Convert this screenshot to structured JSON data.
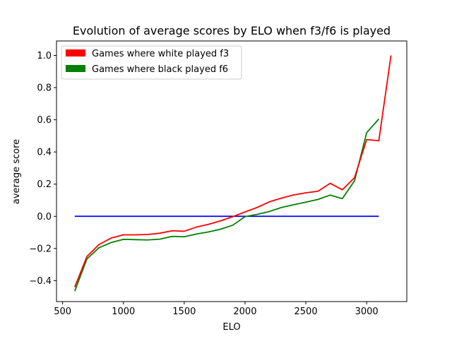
{
  "chart_data": {
    "type": "line",
    "title": "Evolution of average scores by ELO when f3/f6 is played",
    "xlabel": "ELO",
    "ylabel": "average score",
    "xlim": [
      450,
      3330
    ],
    "ylim": [
      -0.53,
      1.09
    ],
    "xticks": [
      500,
      1000,
      1500,
      2000,
      2500,
      3000
    ],
    "yticks": [
      -0.4,
      -0.2,
      0.0,
      0.2,
      0.4,
      0.6,
      0.8,
      1.0
    ],
    "xtick_labels": [
      "500",
      "1000",
      "1500",
      "2000",
      "2500",
      "3000"
    ],
    "ytick_labels": [
      "−0.4",
      "−0.2",
      "0.0",
      "0.2",
      "0.4",
      "0.6",
      "0.8",
      "1.0"
    ],
    "grid": false,
    "legend_position": "top-left",
    "legend": [
      {
        "label": "Games where white played f3",
        "color": "#ff0000"
      },
      {
        "label": "Games where black played f6",
        "color": "#008000"
      }
    ],
    "series": [
      {
        "name": "Games where white played f3",
        "color": "#ff0000",
        "x": [
          600,
          700,
          800,
          900,
          1000,
          1100,
          1200,
          1300,
          1400,
          1500,
          1600,
          1700,
          1800,
          1900,
          2000,
          2100,
          2200,
          2300,
          2400,
          2500,
          2600,
          2700,
          2800,
          2900,
          3000,
          3100,
          3200
        ],
        "y": [
          -0.44,
          -0.25,
          -0.175,
          -0.135,
          -0.115,
          -0.115,
          -0.113,
          -0.105,
          -0.09,
          -0.093,
          -0.067,
          -0.05,
          -0.028,
          -0.002,
          0.027,
          0.055,
          0.09,
          0.113,
          0.133,
          0.146,
          0.156,
          0.205,
          0.165,
          0.24,
          0.477,
          0.47,
          1.0
        ]
      },
      {
        "name": "Games where black played f6",
        "color": "#008000",
        "x": [
          600,
          700,
          800,
          900,
          1000,
          1100,
          1200,
          1300,
          1400,
          1500,
          1600,
          1700,
          1800,
          1900,
          2000,
          2100,
          2200,
          2300,
          2400,
          2500,
          2600,
          2700,
          2800,
          2900,
          3000,
          3100
        ],
        "y": [
          -0.465,
          -0.265,
          -0.195,
          -0.163,
          -0.143,
          -0.145,
          -0.147,
          -0.142,
          -0.125,
          -0.127,
          -0.11,
          -0.097,
          -0.08,
          -0.055,
          -0.002,
          0.012,
          0.03,
          0.055,
          0.072,
          0.088,
          0.105,
          0.132,
          0.11,
          0.22,
          0.52,
          0.605
        ]
      },
      {
        "name": "",
        "color": "#0000ff",
        "x": [
          600,
          3100
        ],
        "y": [
          0.0,
          0.0
        ]
      }
    ]
  }
}
